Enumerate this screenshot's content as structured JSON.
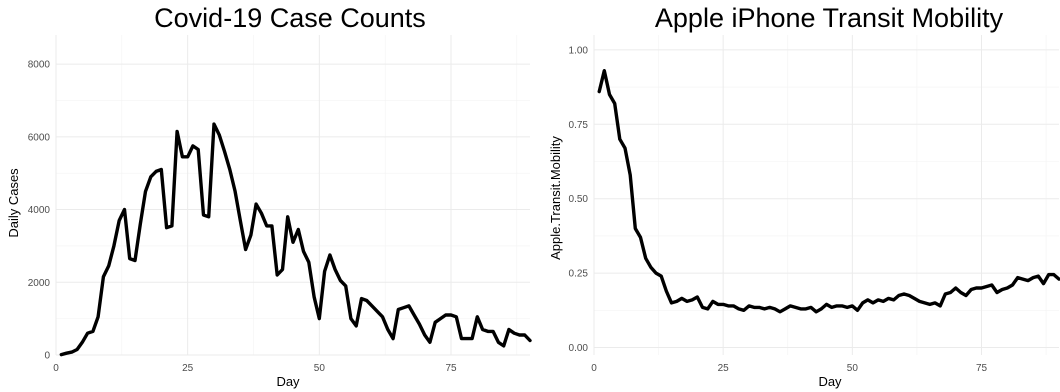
{
  "chart_data": [
    {
      "type": "line",
      "title": "Covid-19 Case Counts",
      "xlabel": "Day",
      "ylabel": "Daily Cases",
      "xlim": [
        0,
        90
      ],
      "ylim": [
        0,
        8800
      ],
      "x_ticks": [
        0,
        25,
        50,
        75
      ],
      "y_ticks": [
        0,
        2000,
        4000,
        6000,
        8000
      ],
      "x_tick_labels": [
        "0",
        "25",
        "50",
        "75"
      ],
      "y_tick_labels": [
        "0",
        "2000",
        "4000",
        "6000",
        "8000"
      ],
      "grid": true,
      "series": [
        {
          "x": [
            1,
            2,
            3,
            4,
            5,
            6,
            7,
            8,
            9,
            10,
            11,
            12,
            13,
            14,
            15,
            16,
            17,
            18,
            19,
            20,
            21,
            22,
            23,
            24,
            25,
            26,
            27,
            28,
            29,
            30,
            31,
            32,
            33,
            34,
            35,
            36,
            37,
            38,
            39,
            40,
            41,
            42,
            43,
            44,
            45,
            46,
            47,
            48,
            49,
            50,
            51,
            52,
            53,
            54,
            55,
            56,
            57,
            58,
            59,
            60,
            61,
            62,
            63,
            64,
            65,
            66,
            67,
            68,
            69,
            70,
            71,
            72,
            73,
            74,
            75,
            76,
            77,
            78,
            79,
            80,
            81,
            82,
            83,
            84,
            85,
            86,
            87,
            88,
            89,
            90
          ],
          "y": [
            10,
            50,
            80,
            150,
            350,
            600,
            650,
            1050,
            2150,
            2450,
            3000,
            3700,
            4000,
            2650,
            2600,
            3600,
            4500,
            4900,
            5050,
            5100,
            3500,
            3550,
            6150,
            5450,
            5450,
            5750,
            5650,
            3850,
            3800,
            6350,
            6050,
            5600,
            5100,
            4500,
            3700,
            2900,
            3300,
            4150,
            3900,
            3550,
            3550,
            2200,
            2350,
            3800,
            3100,
            3450,
            2850,
            2550,
            1600,
            1000,
            2300,
            2750,
            2350,
            2050,
            1900,
            1000,
            800,
            1550,
            1500,
            1350,
            1200,
            1050,
            700,
            450,
            1250,
            1300,
            1350,
            1100,
            850,
            550,
            350,
            900,
            1000,
            1100,
            1100,
            1050,
            450,
            450,
            450,
            1050,
            700,
            650,
            650,
            350,
            250,
            700,
            600,
            550,
            550,
            400
          ]
        }
      ]
    },
    {
      "type": "line",
      "title": "Apple iPhone Transit Mobility",
      "xlabel": "Day",
      "ylabel": "Apple.Transit.Mobility",
      "xlim": [
        0,
        90
      ],
      "ylim": [
        -0.025,
        1.05
      ],
      "x_ticks": [
        0,
        25,
        50,
        75
      ],
      "y_ticks": [
        0,
        0.25,
        0.5,
        0.75,
        1.0
      ],
      "x_tick_labels": [
        "0",
        "25",
        "50",
        "75"
      ],
      "y_tick_labels": [
        "0.00",
        "0.25",
        "0.50",
        "0.75",
        "1.00"
      ],
      "grid": true,
      "series": [
        {
          "x": [
            1,
            2,
            3,
            4,
            5,
            6,
            7,
            8,
            9,
            10,
            11,
            12,
            13,
            14,
            15,
            16,
            17,
            18,
            19,
            20,
            21,
            22,
            23,
            24,
            25,
            26,
            27,
            28,
            29,
            30,
            31,
            32,
            33,
            34,
            35,
            36,
            37,
            38,
            39,
            40,
            41,
            42,
            43,
            44,
            45,
            46,
            47,
            48,
            49,
            50,
            51,
            52,
            53,
            54,
            55,
            56,
            57,
            58,
            59,
            60,
            61,
            62,
            63,
            64,
            65,
            66,
            67,
            68,
            69,
            70,
            71,
            72,
            73,
            74,
            75,
            76,
            77,
            78,
            79,
            80,
            81,
            82,
            83,
            84,
            85,
            86,
            87,
            88,
            89,
            90
          ],
          "y": [
            0.86,
            0.93,
            0.85,
            0.82,
            0.7,
            0.67,
            0.58,
            0.4,
            0.37,
            0.3,
            0.27,
            0.25,
            0.24,
            0.19,
            0.15,
            0.155,
            0.165,
            0.155,
            0.16,
            0.17,
            0.135,
            0.13,
            0.155,
            0.145,
            0.145,
            0.14,
            0.14,
            0.13,
            0.125,
            0.14,
            0.135,
            0.135,
            0.13,
            0.135,
            0.13,
            0.12,
            0.13,
            0.14,
            0.135,
            0.13,
            0.13,
            0.135,
            0.12,
            0.13,
            0.145,
            0.135,
            0.14,
            0.14,
            0.135,
            0.14,
            0.125,
            0.15,
            0.16,
            0.15,
            0.16,
            0.155,
            0.165,
            0.16,
            0.175,
            0.18,
            0.175,
            0.165,
            0.155,
            0.15,
            0.145,
            0.15,
            0.14,
            0.18,
            0.185,
            0.2,
            0.185,
            0.175,
            0.195,
            0.2,
            0.2,
            0.205,
            0.21,
            0.185,
            0.195,
            0.2,
            0.21,
            0.235,
            0.23,
            0.225,
            0.235,
            0.24,
            0.215,
            0.245,
            0.245,
            0.23
          ]
        }
      ]
    }
  ]
}
